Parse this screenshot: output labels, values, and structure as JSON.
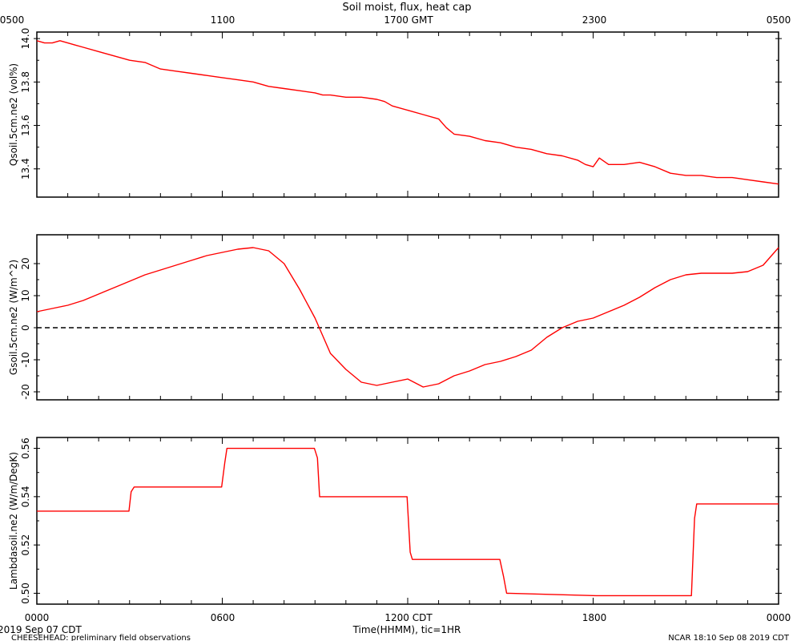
{
  "header": {
    "title": "Soil moist, flux, heat cap",
    "top_axis_ticks": [
      "0500",
      "1100",
      "1700 GMT",
      "2300",
      "0500"
    ]
  },
  "footer": {
    "bottom_axis_ticks": [
      "0000",
      "0600",
      "1200 CDT",
      "1800",
      "0000"
    ],
    "xlabel": "Time(HHMM), tic=1HR",
    "date": "2019 Sep 07 CDT",
    "source": "CHEESEHEAD: preliminary field observations",
    "stamp": "NCAR 18:10 Sep 08 2019 CDT"
  },
  "colors": {
    "series": "#ff0000",
    "axes": "#000000"
  },
  "chart_data": [
    {
      "type": "line",
      "title": "",
      "xlabel": "Time(HHMM), tic=1HR",
      "ylabel": "Qsoil.5cm.ne2 (vol%)",
      "xlim": [
        0,
        24
      ],
      "ylim": [
        13.27,
        14.03
      ],
      "yticks": [
        13.4,
        13.6,
        13.8,
        14.0
      ],
      "ytick_labels": [
        "13.4",
        "13.6",
        "13.8",
        "14.0"
      ],
      "grid": false,
      "series": [
        {
          "color": "#ff0000",
          "x": [
            0,
            0.25,
            0.5,
            0.75,
            1,
            1.25,
            1.5,
            2,
            2.5,
            3,
            3.5,
            4,
            4.5,
            5,
            5.5,
            6,
            6.5,
            7,
            7.5,
            8,
            8.5,
            9,
            9.25,
            9.5,
            10,
            10.5,
            11,
            11.25,
            11.5,
            12,
            12.5,
            13,
            13.25,
            13.5,
            14,
            14.5,
            15,
            15.5,
            16,
            16.5,
            17,
            17.5,
            17.75,
            18,
            18.2,
            18.5,
            19,
            19.5,
            20,
            20.5,
            21,
            21.5,
            22,
            22.5,
            23,
            23.5,
            24
          ],
          "y": [
            13.99,
            13.98,
            13.98,
            13.99,
            13.98,
            13.97,
            13.96,
            13.94,
            13.92,
            13.9,
            13.89,
            13.86,
            13.85,
            13.84,
            13.83,
            13.82,
            13.81,
            13.8,
            13.78,
            13.77,
            13.76,
            13.75,
            13.74,
            13.74,
            13.73,
            13.73,
            13.72,
            13.71,
            13.69,
            13.67,
            13.65,
            13.63,
            13.59,
            13.56,
            13.55,
            13.53,
            13.52,
            13.5,
            13.49,
            13.47,
            13.46,
            13.44,
            13.42,
            13.41,
            13.45,
            13.42,
            13.42,
            13.43,
            13.41,
            13.38,
            13.37,
            13.37,
            13.36,
            13.36,
            13.35,
            13.34,
            13.33
          ]
        }
      ]
    },
    {
      "type": "line",
      "title": "",
      "xlabel": "Time(HHMM), tic=1HR",
      "ylabel": "Gsoil.5cm.ne2 (W/m^2)",
      "xlim": [
        0,
        24
      ],
      "ylim": [
        -22.5,
        29
      ],
      "yticks": [
        -20,
        -10,
        0,
        10,
        20
      ],
      "ytick_labels": [
        "-20",
        "-10",
        "0",
        "10",
        "20"
      ],
      "zero_line": true,
      "grid": false,
      "series": [
        {
          "color": "#ff0000",
          "x": [
            0,
            0.5,
            1,
            1.5,
            2,
            2.5,
            3,
            3.5,
            4,
            4.5,
            5,
            5.5,
            6,
            6.5,
            7,
            7.5,
            8,
            8.5,
            9,
            9.5,
            10,
            10.5,
            11,
            11.5,
            12,
            12.5,
            13,
            13.5,
            14,
            14.5,
            15,
            15.5,
            16,
            16.5,
            17,
            17.5,
            18,
            18.5,
            19,
            19.5,
            20,
            20.5,
            21,
            21.5,
            22,
            22.5,
            23,
            23.5,
            24
          ],
          "y": [
            5,
            6,
            7,
            8.5,
            10.5,
            12.5,
            14.5,
            16.5,
            18,
            19.5,
            21,
            22.5,
            23.5,
            24.5,
            25,
            24,
            20,
            12,
            3,
            -8,
            -13,
            -17,
            -18,
            -17,
            -16,
            -18.5,
            -17.5,
            -15,
            -13.5,
            -11.5,
            -10.5,
            -9,
            -7,
            -3,
            0,
            2,
            3,
            5,
            7,
            9.5,
            12.5,
            15,
            16.5,
            17,
            17,
            17,
            17.5,
            19.5,
            25
          ]
        }
      ]
    },
    {
      "type": "line",
      "title": "",
      "xlabel": "Time(HHMM), tic=1HR",
      "ylabel": "Lambdasoil.ne2 (W/m/DegK)",
      "xlim": [
        0,
        24
      ],
      "ylim": [
        0.4955,
        0.5645
      ],
      "yticks": [
        0.5,
        0.52,
        0.54,
        0.56
      ],
      "ytick_labels": [
        "0.50",
        "0.52",
        "0.54",
        "0.56"
      ],
      "grid": false,
      "series": [
        {
          "color": "#ff0000",
          "x": [
            0,
            2.98,
            3.05,
            3.15,
            5.98,
            6.08,
            6.15,
            8.98,
            9.08,
            9.15,
            11.98,
            12.08,
            12.15,
            14.98,
            15.1,
            15.2,
            18.1,
            21.18,
            21.28,
            21.35,
            24
          ],
          "y": [
            0.534,
            0.534,
            0.542,
            0.544,
            0.544,
            0.554,
            0.56,
            0.56,
            0.556,
            0.54,
            0.54,
            0.517,
            0.514,
            0.514,
            0.507,
            0.5,
            0.499,
            0.499,
            0.531,
            0.537,
            0.537
          ]
        }
      ]
    }
  ]
}
